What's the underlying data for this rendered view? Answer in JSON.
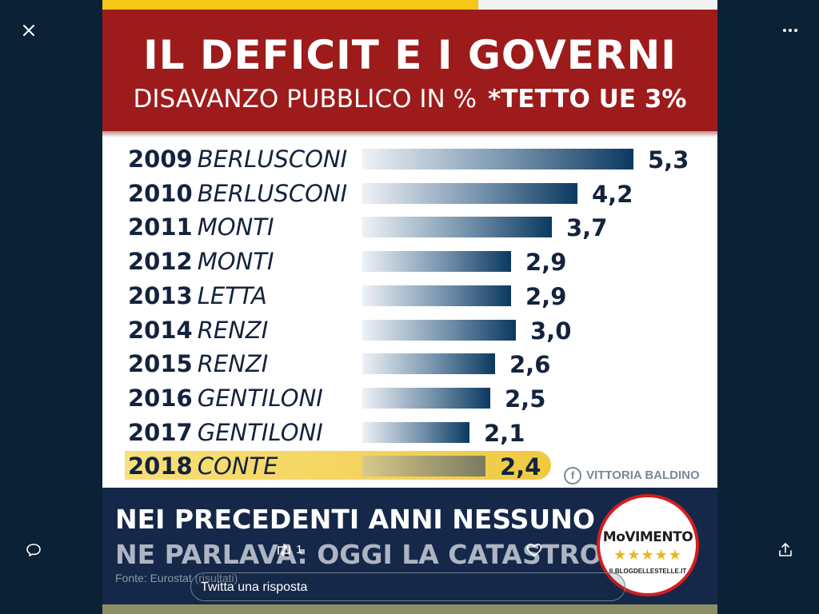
{
  "viewer": {
    "close_icon": "close-icon",
    "more_icon": "more-icon",
    "comment_icon": "comment-icon",
    "retweet_icon": "retweet-icon",
    "retweet_count": "1",
    "like_icon": "heart-icon",
    "share_icon": "share-icon",
    "reply_placeholder": "Twitta una risposta"
  },
  "infographic": {
    "title": "IL DEFICIT E I GOVERNI",
    "subtitle": "DISAVANZO PUBBLICO IN %",
    "subtitle_note": "*TETTO UE 3%",
    "credit": "VITTORIA BALDINO",
    "bottom_line1": "NEI PRECEDENTI ANNI NESSUNO",
    "bottom_line2": "NE PARLAVA: OGGI LA CATASTROFE",
    "source": "Fonte: Eurostat (risultati)",
    "logo_text": "MoVIMENTO",
    "logo_stars": "★★★★★",
    "logo_url": "ILBLOGDELLESTELLE.IT",
    "colors": {
      "title_band": "#9e1b1b",
      "bar_dark": "#0b3960",
      "highlight": "#f3d35a",
      "bottom_band": "#15284a"
    }
  },
  "chart_data": {
    "type": "bar",
    "orientation": "horizontal",
    "title": "IL DEFICIT E I GOVERNI",
    "subtitle": "DISAVANZO PUBBLICO IN %  *TETTO UE 3%",
    "rows": [
      {
        "year": "2009",
        "government": "BERLUSCONI",
        "value": 5.3,
        "label": "5,3"
      },
      {
        "year": "2010",
        "government": "BERLUSCONI",
        "value": 4.2,
        "label": "4,2"
      },
      {
        "year": "2011",
        "government": "MONTI",
        "value": 3.7,
        "label": "3,7"
      },
      {
        "year": "2012",
        "government": "MONTI",
        "value": 2.9,
        "label": "2,9"
      },
      {
        "year": "2013",
        "government": "LETTA",
        "value": 2.9,
        "label": "2,9"
      },
      {
        "year": "2014",
        "government": "RENZI",
        "value": 3.0,
        "label": "3,0"
      },
      {
        "year": "2015",
        "government": "RENZI",
        "value": 2.6,
        "label": "2,6"
      },
      {
        "year": "2016",
        "government": "GENTILONI",
        "value": 2.5,
        "label": "2,5"
      },
      {
        "year": "2017",
        "government": "GENTILONI",
        "value": 2.1,
        "label": "2,1"
      },
      {
        "year": "2018",
        "government": "CONTE",
        "value": 2.4,
        "label": "2,4",
        "highlighted": true
      }
    ],
    "grid": false,
    "legend": "none"
  }
}
